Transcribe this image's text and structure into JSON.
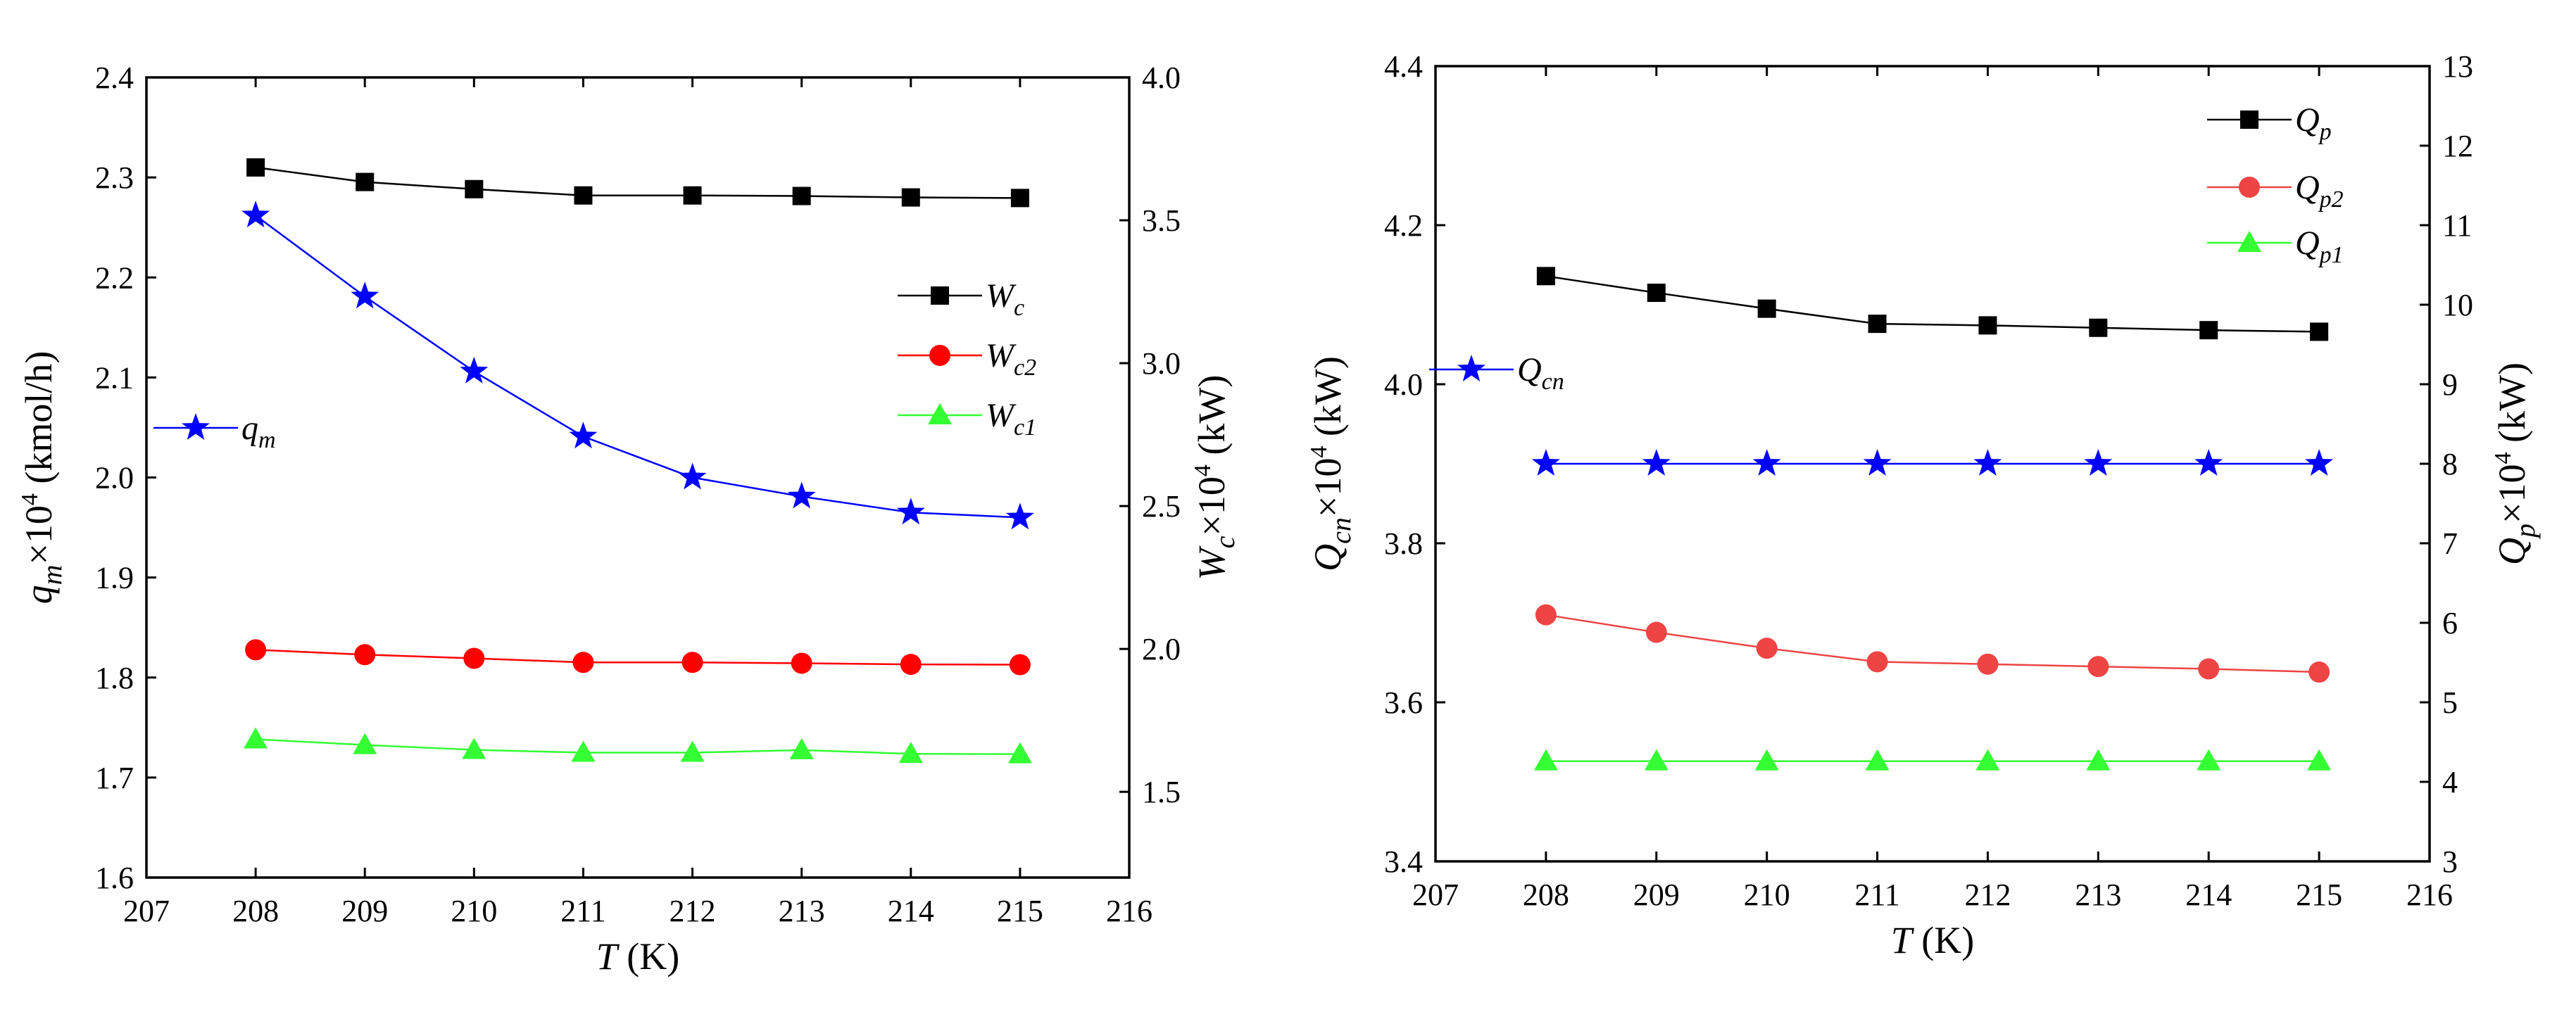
{
  "chart_data": [
    {
      "type": "line",
      "panel": "left",
      "xlabel": "T (K)",
      "x_ticks": [
        "207",
        "208",
        "209",
        "210",
        "211",
        "212",
        "213",
        "214",
        "215",
        "216"
      ],
      "xlim": [
        207,
        216
      ],
      "x": [
        208,
        209,
        210,
        211,
        212,
        213,
        214,
        215
      ],
      "left_axis": {
        "label": "q_m×10^4 (kmol/h)",
        "ylim": [
          1.6,
          2.4
        ],
        "ticks": [
          "1.6",
          "1.7",
          "1.8",
          "1.9",
          "2.0",
          "2.1",
          "2.2",
          "2.3",
          "2.4"
        ]
      },
      "right_axis": {
        "label": "W_c×10^4 (kW)",
        "ylim": [
          1.2,
          4.0
        ],
        "ticks": [
          "1.5",
          "2.0",
          "2.5",
          "3.0",
          "3.5",
          "4.0"
        ]
      },
      "series": [
        {
          "name": "q_m",
          "axis": "left",
          "color": "#0000ff",
          "marker": "star",
          "values": [
            2.262,
            2.181,
            2.106,
            2.041,
            2.0,
            1.981,
            1.965,
            1.96
          ]
        },
        {
          "name": "W_c",
          "axis": "right",
          "color": "#000000",
          "marker": "square",
          "values": [
            3.685,
            3.634,
            3.609,
            3.587,
            3.587,
            3.585,
            3.58,
            3.578
          ]
        },
        {
          "name": "W_c2",
          "axis": "right",
          "color": "#ff0000",
          "marker": "circle",
          "values": [
            1.997,
            1.98,
            1.967,
            1.953,
            1.953,
            1.95,
            1.946,
            1.945
          ]
        },
        {
          "name": "W_c1",
          "axis": "right",
          "color": "#33ff33",
          "marker": "triangle",
          "values": [
            1.684,
            1.664,
            1.647,
            1.637,
            1.637,
            1.646,
            1.633,
            1.632
          ]
        }
      ],
      "legend": [
        {
          "series": "W_c",
          "base": "W",
          "sub": "c"
        },
        {
          "series": "W_c2",
          "base": "W",
          "sub": "c2"
        },
        {
          "series": "W_c1",
          "base": "W",
          "sub": "c1"
        },
        {
          "series": "q_m",
          "base": "q",
          "sub": "m"
        }
      ]
    },
    {
      "type": "line",
      "panel": "right",
      "xlabel": "T (K)",
      "x_ticks": [
        "207",
        "208",
        "209",
        "210",
        "211",
        "212",
        "213",
        "214",
        "215",
        "216"
      ],
      "xlim": [
        207,
        216
      ],
      "x": [
        208,
        209,
        210,
        211,
        212,
        213,
        214,
        215
      ],
      "left_axis": {
        "label": "Q_cn×10^4 (kW)",
        "ylim": [
          3.4,
          4.4
        ],
        "ticks": [
          "3.4",
          "3.6",
          "3.8",
          "4.0",
          "4.2",
          "4.4"
        ]
      },
      "right_axis": {
        "label": "Q_p×10^4 (kW)",
        "ylim": [
          3,
          13
        ],
        "ticks": [
          "3",
          "4",
          "5",
          "6",
          "7",
          "8",
          "9",
          "10",
          "11",
          "12",
          "13"
        ]
      },
      "series": [
        {
          "name": "Q_cn",
          "axis": "left",
          "color": "#0000ff",
          "marker": "star",
          "values": [
            3.9,
            3.9,
            3.9,
            3.9,
            3.9,
            3.9,
            3.9,
            3.9
          ]
        },
        {
          "name": "Q_p",
          "axis": "right",
          "color": "#000000",
          "marker": "square",
          "values": [
            10.36,
            10.15,
            9.95,
            9.76,
            9.74,
            9.71,
            9.68,
            9.66
          ]
        },
        {
          "name": "Q_p2",
          "axis": "right",
          "color": "#ee4444",
          "marker": "circle",
          "values": [
            6.1,
            5.88,
            5.68,
            5.51,
            5.48,
            5.45,
            5.42,
            5.38
          ]
        },
        {
          "name": "Q_p1",
          "axis": "right",
          "color": "#33ff33",
          "marker": "triangle",
          "values": [
            4.26,
            4.26,
            4.26,
            4.26,
            4.26,
            4.26,
            4.26,
            4.26
          ]
        }
      ],
      "legend": [
        {
          "series": "Q_p",
          "base": "Q",
          "sub": "p"
        },
        {
          "series": "Q_p2",
          "base": "Q",
          "sub": "p2"
        },
        {
          "series": "Q_p1",
          "base": "Q",
          "sub": "p1"
        },
        {
          "series": "Q_cn",
          "base": "Q",
          "sub": "cn"
        }
      ]
    }
  ]
}
